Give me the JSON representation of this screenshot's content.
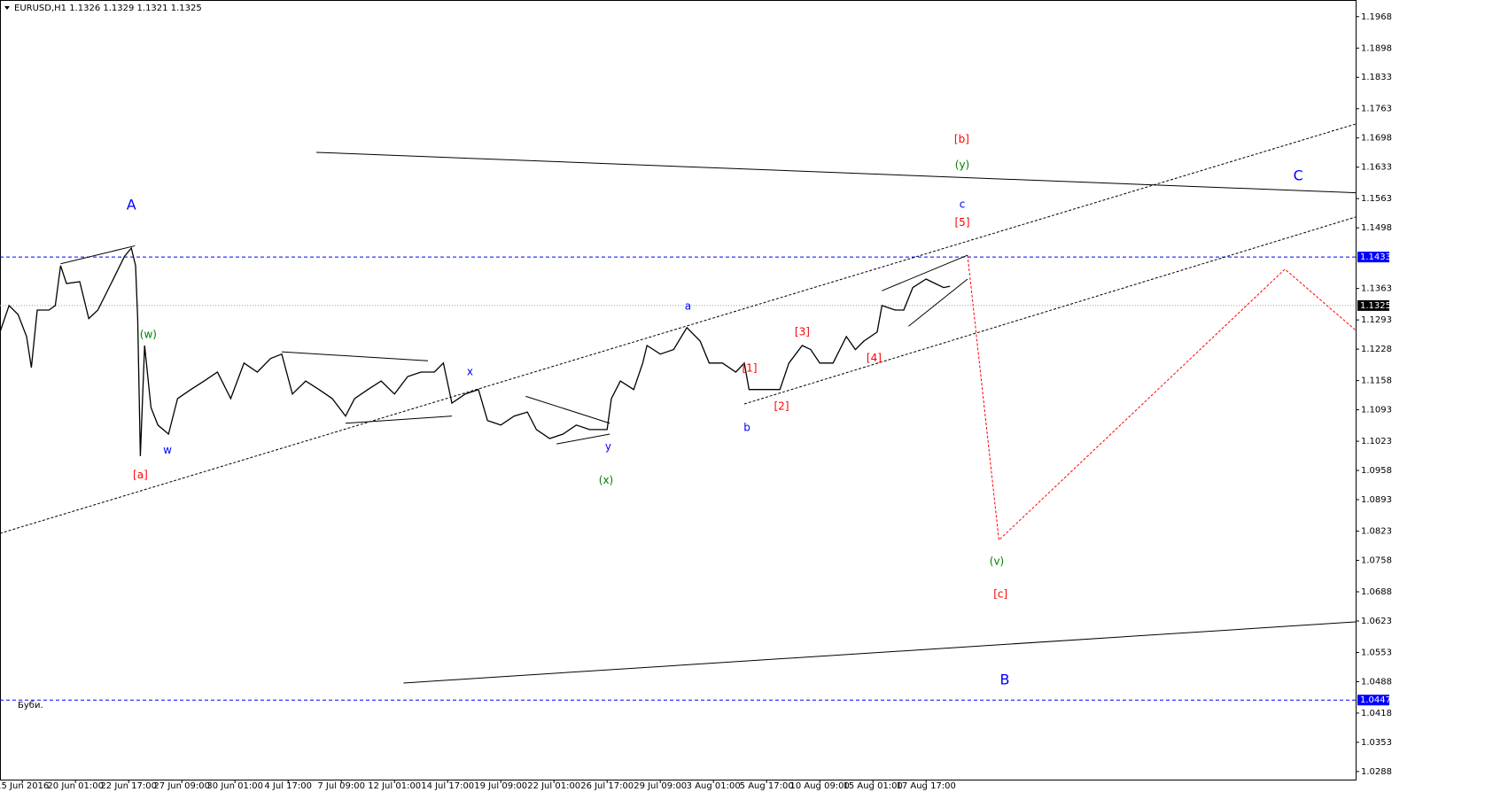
{
  "chart_data": {
    "type": "line",
    "title": "EURUSD,H1  1.1326 1.1329 1.1321 1.1325",
    "caption": "Буби.",
    "color": "#000000",
    "xlim": [
      -0.42,
      25.08
    ],
    "ylim": [
      1.027,
      1.2005
    ],
    "xticks": [
      {
        "value": 0,
        "label": "15 Jun 2016"
      },
      {
        "value": 1,
        "label": "20 Jun 01:00"
      },
      {
        "value": 2,
        "label": "22 Jun 17:00"
      },
      {
        "value": 3,
        "label": "27 Jun 09:00"
      },
      {
        "value": 4,
        "label": "30 Jun 01:00"
      },
      {
        "value": 5,
        "label": "4 Jul 17:00"
      },
      {
        "value": 6,
        "label": "7 Jul 09:00"
      },
      {
        "value": 7,
        "label": "12 Jul 01:00"
      },
      {
        "value": 8,
        "label": "14 Jul 17:00"
      },
      {
        "value": 9,
        "label": "19 Jul 09:00"
      },
      {
        "value": 10,
        "label": "22 Jul 01:00"
      },
      {
        "value": 11,
        "label": "26 Jul 17:00"
      },
      {
        "value": 12,
        "label": "29 Jul 09:00"
      },
      {
        "value": 13,
        "label": "3 Aug 01:00"
      },
      {
        "value": 14,
        "label": "5 Aug 17:00"
      },
      {
        "value": 15,
        "label": "10 Aug 09:00"
      },
      {
        "value": 16,
        "label": "15 Aug 01:00"
      },
      {
        "value": 17,
        "label": "17 Aug 17:00"
      }
    ],
    "yticks": [
      1.1968,
      1.1898,
      1.1833,
      1.1763,
      1.1698,
      1.1633,
      1.1563,
      1.1498,
      1.1363,
      1.1293,
      1.1228,
      1.1158,
      1.1093,
      1.1023,
      1.0958,
      1.0893,
      1.0823,
      1.0758,
      1.0688,
      1.0623,
      1.0553,
      1.0488,
      1.0418,
      1.0353,
      1.0288
    ],
    "levels": [
      {
        "value": 1.1433,
        "color": "#0000ff",
        "dash": "4 3"
      },
      {
        "value": 1.1325,
        "color": "#a0a0a0",
        "dash": "1 2"
      },
      {
        "value": 1.0447,
        "color": "#0000ff",
        "dash": "4 3"
      }
    ],
    "x": [
      -0.42,
      -0.25,
      -0.08,
      0.08,
      0.17,
      0.28,
      0.5,
      0.62,
      0.72,
      0.83,
      1.08,
      1.25,
      1.42,
      1.67,
      1.92,
      2.05,
      2.13,
      2.17,
      2.22,
      2.3,
      2.42,
      2.55,
      2.75,
      2.92,
      3.17,
      3.42,
      3.67,
      3.92,
      4.17,
      4.42,
      4.67,
      4.88,
      5.08,
      5.33,
      5.58,
      5.83,
      6.08,
      6.25,
      6.5,
      6.75,
      7,
      7.25,
      7.5,
      7.75,
      7.92,
      8.08,
      8.33,
      8.58,
      8.75,
      9,
      9.25,
      9.5,
      9.67,
      9.92,
      10.17,
      10.42,
      10.67,
      11,
      11.08,
      11.25,
      11.5,
      11.67,
      11.75,
      12,
      12.25,
      12.5,
      12.75,
      12.92,
      13.17,
      13.42,
      13.58,
      13.67,
      13.92,
      14.25,
      14.42,
      14.67,
      14.83,
      15,
      15.25,
      15.5,
      15.67,
      15.83,
      16.08,
      16.17,
      16.42,
      16.58,
      16.75,
      17,
      17.17,
      17.33,
      17.45
    ],
    "values": [
      1.1266,
      1.1325,
      1.1305,
      1.1256,
      1.1187,
      1.1315,
      1.1315,
      1.1325,
      1.1414,
      1.1374,
      1.1378,
      1.1296,
      1.1315,
      1.1374,
      1.1434,
      1.1453,
      1.1414,
      1.1296,
      1.099,
      1.1236,
      1.1098,
      1.1059,
      1.1039,
      1.1118,
      1.1138,
      1.1157,
      1.1177,
      1.1118,
      1.1197,
      1.1177,
      1.1207,
      1.1217,
      1.1128,
      1.1157,
      1.1138,
      1.1118,
      1.1079,
      1.1118,
      1.1138,
      1.1157,
      1.1128,
      1.1167,
      1.1177,
      1.1177,
      1.1197,
      1.1108,
      1.1128,
      1.1138,
      1.1069,
      1.1059,
      1.1079,
      1.1088,
      1.1049,
      1.1029,
      1.1039,
      1.1059,
      1.1049,
      1.1049,
      1.1118,
      1.1157,
      1.1138,
      1.1197,
      1.1236,
      1.1217,
      1.1227,
      1.1276,
      1.1246,
      1.1197,
      1.1197,
      1.1177,
      1.1197,
      1.1138,
      1.1138,
      1.1138,
      1.1197,
      1.1236,
      1.1227,
      1.1197,
      1.1197,
      1.1256,
      1.1227,
      1.1246,
      1.1266,
      1.1325,
      1.1315,
      1.1315,
      1.1365,
      1.1384,
      1.1374,
      1.1365,
      1.1368
    ],
    "lines": [
      {
        "color": "#000000",
        "dash": "3 2",
        "x": [
          -0.42,
          25.08
        ],
        "y": [
          1.0818,
          1.1729
        ]
      },
      {
        "color": "#000000",
        "dash": "3 2",
        "x": [
          13.58,
          25.08
        ],
        "y": [
          1.1106,
          1.1522
        ]
      },
      {
        "color": "#000000",
        "dash": "none",
        "x": [
          5.53,
          25.08
        ],
        "y": [
          1.1666,
          1.1576
        ]
      },
      {
        "color": "#000000",
        "dash": "none",
        "x": [
          7.17,
          25.08
        ],
        "y": [
          1.0485,
          1.0621
        ]
      },
      {
        "color": "#ff0000",
        "dash": "3 2",
        "x": [
          17.78,
          18.37,
          23.75,
          25.08
        ],
        "y": [
          1.1437,
          1.0803,
          1.1406,
          1.127
        ]
      },
      {
        "color": "#000000",
        "dash": "none",
        "x": [
          0.72,
          2.12
        ],
        "y": [
          1.1418,
          1.1458
        ]
      },
      {
        "color": "#000000",
        "dash": "none",
        "x": [
          4.88,
          7.63
        ],
        "y": [
          1.1222,
          1.1202
        ]
      },
      {
        "color": "#000000",
        "dash": "none",
        "x": [
          6.08,
          8.08
        ],
        "y": [
          1.1063,
          1.1079
        ]
      },
      {
        "color": "#000000",
        "dash": "none",
        "x": [
          9.47,
          11.05
        ],
        "y": [
          1.1123,
          1.1063
        ]
      },
      {
        "color": "#000000",
        "dash": "none",
        "x": [
          10.05,
          11.05
        ],
        "y": [
          1.1017,
          1.1039
        ]
      },
      {
        "color": "#000000",
        "dash": "none",
        "x": [
          16.17,
          17.78
        ],
        "y": [
          1.1358,
          1.1437
        ]
      },
      {
        "color": "#000000",
        "dash": "none",
        "x": [
          16.67,
          17.78
        ],
        "y": [
          1.1279,
          1.1384
        ]
      }
    ],
    "annotations": [
      {
        "text": "A",
        "color": "#0000ff",
        "size": "big",
        "x": 2.05,
        "y": 1.1548
      },
      {
        "text": "[a]",
        "color": "#ff0000",
        "size": "small",
        "x": 2.22,
        "y": 1.0947
      },
      {
        "text": "(w)",
        "color": "#008000",
        "size": "small",
        "x": 2.37,
        "y": 1.126
      },
      {
        "text": "w",
        "color": "#0000ff",
        "size": "small",
        "x": 2.73,
        "y": 1.1002
      },
      {
        "text": "x",
        "color": "#0000ff",
        "size": "small",
        "x": 8.42,
        "y": 1.1177
      },
      {
        "text": "y",
        "color": "#0000ff",
        "size": "small",
        "x": 11.02,
        "y": 1.101
      },
      {
        "text": "(x)",
        "color": "#008000",
        "size": "small",
        "x": 10.98,
        "y": 1.0935
      },
      {
        "text": "a",
        "color": "#0000ff",
        "size": "small",
        "x": 12.52,
        "y": 1.1323
      },
      {
        "text": "b",
        "color": "#0000ff",
        "size": "small",
        "x": 13.63,
        "y": 1.1053
      },
      {
        "text": "[1]",
        "color": "#ff0000",
        "size": "small",
        "x": 13.68,
        "y": 1.1185
      },
      {
        "text": "[2]",
        "color": "#ff0000",
        "size": "small",
        "x": 14.28,
        "y": 1.11
      },
      {
        "text": "[3]",
        "color": "#ff0000",
        "size": "small",
        "x": 14.67,
        "y": 1.1266
      },
      {
        "text": "[4]",
        "color": "#ff0000",
        "size": "small",
        "x": 16.02,
        "y": 1.1207
      },
      {
        "text": "[5]",
        "color": "#ff0000",
        "size": "small",
        "x": 17.68,
        "y": 1.1509
      },
      {
        "text": "c",
        "color": "#0000ff",
        "size": "small",
        "x": 17.68,
        "y": 1.155
      },
      {
        "text": "(y)",
        "color": "#008000",
        "size": "small",
        "x": 17.68,
        "y": 1.1637
      },
      {
        "text": "[b]",
        "color": "#ff0000",
        "size": "small",
        "x": 17.67,
        "y": 1.1694
      },
      {
        "text": "C",
        "color": "#0000ff",
        "size": "big",
        "x": 24,
        "y": 1.1613
      },
      {
        "text": "(v)",
        "color": "#008000",
        "size": "small",
        "x": 18.33,
        "y": 1.0755
      },
      {
        "text": "[c]",
        "color": "#ff0000",
        "size": "small",
        "x": 18.4,
        "y": 1.0682
      },
      {
        "text": "B",
        "color": "#0000ff",
        "size": "big",
        "x": 18.48,
        "y": 1.0491
      }
    ]
  }
}
